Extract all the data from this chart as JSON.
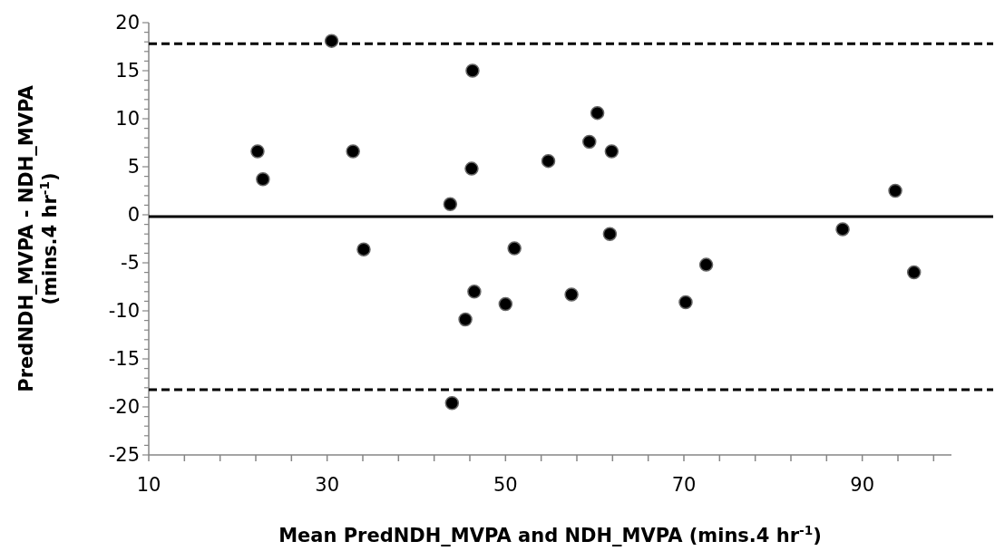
{
  "chart_data": {
    "type": "scatter",
    "xlabel": "Mean PredNDH_MVPA and NDH_MVPA (mins.4 hr$^{-1}$)",
    "ylabel": "PredNDH_MVPA - NDH_MVPA\n(mins.4 hr$^{-1}$)",
    "x": [
      22.2,
      22.8,
      30.5,
      32.9,
      34.1,
      43.8,
      44.0,
      45.5,
      46.3,
      46.2,
      46.5,
      50.0,
      51.0,
      54.8,
      57.4,
      59.4,
      60.3,
      61.9,
      61.7,
      70.2,
      72.5,
      87.8,
      93.7,
      95.8
    ],
    "series": [
      {
        "color": "#000000",
        "values": [
          6.6,
          3.7,
          18.1,
          6.6,
          -3.6,
          1.1,
          -19.6,
          -10.9,
          15.0,
          4.8,
          -8.0,
          -9.3,
          -3.5,
          5.6,
          -8.3,
          7.6,
          10.6,
          6.6,
          -2.0,
          -9.1,
          -5.2,
          -1.5,
          2.5,
          -6.0
        ]
      }
    ],
    "marker": "circle",
    "grid": false,
    "xlim": [
      10,
      100
    ],
    "ylim": [
      -25,
      20
    ],
    "xticks": [
      10,
      {
        "value": 14,
        "label": null
      },
      {
        "value": 18,
        "label": null
      },
      {
        "value": 22,
        "label": null
      },
      {
        "value": 26,
        "label": null
      },
      30,
      {
        "value": 34,
        "label": null
      },
      {
        "value": 38,
        "label": null
      },
      {
        "value": 42,
        "label": null
      },
      {
        "value": 46,
        "label": null
      },
      50,
      {
        "value": 54,
        "label": null
      },
      {
        "value": 58,
        "label": null
      },
      {
        "value": 62,
        "label": null
      },
      {
        "value": 66,
        "label": null
      },
      70,
      {
        "value": 74,
        "label": null
      },
      {
        "value": 78,
        "label": null
      },
      {
        "value": 82,
        "label": null
      },
      {
        "value": 86,
        "label": null
      },
      90,
      {
        "value": 94,
        "label": null
      },
      {
        "value": 98,
        "label": null
      }
    ],
    "yticks": [
      -25,
      {
        "value": -24,
        "label": null
      },
      {
        "value": -23,
        "label": null
      },
      {
        "value": -22,
        "label": null
      },
      {
        "value": -21,
        "label": null
      },
      -20,
      {
        "value": -19,
        "label": null
      },
      {
        "value": -18,
        "label": null
      },
      {
        "value": -17,
        "label": null
      },
      {
        "value": -16,
        "label": null
      },
      -15,
      {
        "value": -14,
        "label": null
      },
      {
        "value": -13,
        "label": null
      },
      {
        "value": -12,
        "label": null
      },
      {
        "value": -11,
        "label": null
      },
      -10,
      {
        "value": -9,
        "label": null
      },
      {
        "value": -8,
        "label": null
      },
      {
        "value": -7,
        "label": null
      },
      {
        "value": -6,
        "label": null
      },
      -5,
      {
        "value": -4,
        "label": null
      },
      {
        "value": -3,
        "label": null
      },
      {
        "value": -2,
        "label": null
      },
      {
        "value": -1,
        "label": null
      },
      0,
      {
        "value": 1,
        "label": null
      },
      {
        "value": 2,
        "label": null
      },
      {
        "value": 3,
        "label": null
      },
      {
        "value": 4,
        "label": null
      },
      5,
      {
        "value": 6,
        "label": null
      },
      {
        "value": 7,
        "label": null
      },
      {
        "value": 8,
        "label": null
      },
      {
        "value": 9,
        "label": null
      },
      10,
      {
        "value": 11,
        "label": null
      },
      {
        "value": 12,
        "label": null
      },
      {
        "value": 13,
        "label": null
      },
      {
        "value": 14,
        "label": null
      },
      15,
      {
        "value": 16,
        "label": null
      },
      {
        "value": 17,
        "label": null
      },
      {
        "value": 18,
        "label": null
      },
      {
        "value": 19,
        "label": null
      },
      20
    ],
    "ref_lines": [
      {
        "axis": "y",
        "value": 17.8,
        "line_style": "dashed",
        "color": "#000000"
      },
      {
        "axis": "y",
        "value": -0.2,
        "line_style": "solid",
        "color": "#000000"
      },
      {
        "axis": "y",
        "value": -18.2,
        "line_style": "dashed",
        "color": "#000000"
      }
    ]
  }
}
